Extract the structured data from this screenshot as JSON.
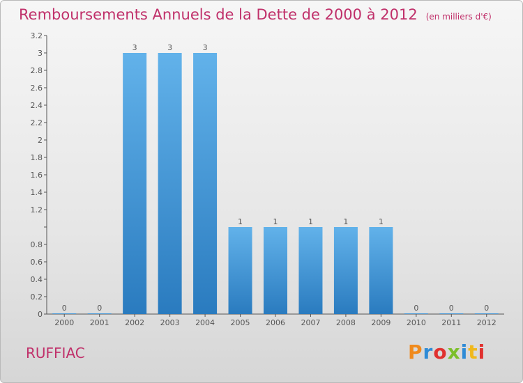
{
  "header": {
    "title": "Remboursements Annuels de la Dette de 2000 à 2012",
    "subtitle": "(en milliers d'€)"
  },
  "footer": {
    "commune": "RUFFIAC",
    "logo_text": "Proxiti"
  },
  "colors": {
    "title": "#c0306a",
    "bar_light": "#62b2ea",
    "bar_dark": "#2a7bbf"
  },
  "chart_data": {
    "type": "bar",
    "categories": [
      "2000",
      "2001",
      "2002",
      "2003",
      "2004",
      "2005",
      "2006",
      "2007",
      "2008",
      "2009",
      "2010",
      "2011",
      "2012"
    ],
    "values": [
      0,
      0,
      3,
      3,
      3,
      1,
      1,
      1,
      1,
      1,
      0,
      0,
      0
    ],
    "value_labels": [
      "0",
      "0",
      "3",
      "3",
      "3",
      "1",
      "1",
      "1",
      "1",
      "1",
      "0",
      "0",
      "0"
    ],
    "title": "Remboursements Annuels de la Dette de 2000 à 2012",
    "ylabel": "",
    "xlabel": "",
    "ylim": [
      0,
      3.2
    ],
    "yticks": [
      {
        "value": 0,
        "label": "0"
      },
      {
        "value": 0.2,
        "label": "0.2"
      },
      {
        "value": 0.4,
        "label": "0.4"
      },
      {
        "value": 0.6,
        "label": "0.6"
      },
      {
        "value": 0.8,
        "label": "0.8"
      },
      {
        "value": 1,
        "label": ""
      },
      {
        "value": 1.2,
        "label": "1.2"
      },
      {
        "value": 1.4,
        "label": "1.4"
      },
      {
        "value": 1.6,
        "label": "1.6"
      },
      {
        "value": 1.8,
        "label": "1.8"
      },
      {
        "value": 2,
        "label": "2"
      },
      {
        "value": 2.2,
        "label": "2.2"
      },
      {
        "value": 2.4,
        "label": "2.4"
      },
      {
        "value": 2.6,
        "label": "2.6"
      },
      {
        "value": 2.8,
        "label": "2.8"
      },
      {
        "value": 3,
        "label": "3"
      },
      {
        "value": 3.2,
        "label": "3.2"
      }
    ],
    "grid": false
  }
}
